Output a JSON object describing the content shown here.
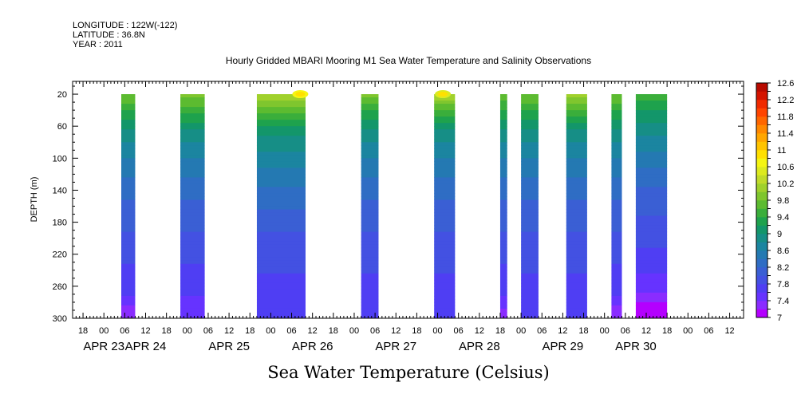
{
  "header": {
    "longitude": "LONGITUDE : 122W(-122)",
    "latitude": "LATITUDE : 36.8N",
    "year": "YEAR : 2011"
  },
  "title": "Hourly Gridded MBARI Mooring M1 Sea Water Temperature and Salinity Observations",
  "footer_title": "Sea Water Temperature (Celsius)",
  "chart_data": {
    "type": "heatmap",
    "ylabel": "DEPTH (m)",
    "xlabel": "",
    "ylim": [
      300,
      4
    ],
    "y_ticks": [
      20,
      60,
      100,
      140,
      180,
      220,
      260,
      300
    ],
    "x_unit": "hours since APR 23 00:00",
    "xlim": [
      -9,
      184
    ],
    "hour_ticks": [
      {
        "h": -6,
        "label": "18"
      },
      {
        "h": 0,
        "label": "00"
      },
      {
        "h": 6,
        "label": "06"
      },
      {
        "h": 12,
        "label": "12"
      },
      {
        "h": 18,
        "label": "18"
      },
      {
        "h": 24,
        "label": "00"
      },
      {
        "h": 30,
        "label": "06"
      },
      {
        "h": 36,
        "label": "12"
      },
      {
        "h": 42,
        "label": "18"
      },
      {
        "h": 48,
        "label": "00"
      },
      {
        "h": 54,
        "label": "06"
      },
      {
        "h": 60,
        "label": "12"
      },
      {
        "h": 66,
        "label": "18"
      },
      {
        "h": 72,
        "label": "00"
      },
      {
        "h": 78,
        "label": "06"
      },
      {
        "h": 84,
        "label": "12"
      },
      {
        "h": 90,
        "label": "18"
      },
      {
        "h": 96,
        "label": "00"
      },
      {
        "h": 102,
        "label": "06"
      },
      {
        "h": 108,
        "label": "12"
      },
      {
        "h": 114,
        "label": "18"
      },
      {
        "h": 120,
        "label": "00"
      },
      {
        "h": 126,
        "label": "06"
      },
      {
        "h": 132,
        "label": "12"
      },
      {
        "h": 138,
        "label": "18"
      },
      {
        "h": 144,
        "label": "00"
      },
      {
        "h": 150,
        "label": "06"
      },
      {
        "h": 156,
        "label": "12"
      },
      {
        "h": 162,
        "label": "18"
      },
      {
        "h": 168,
        "label": "00"
      },
      {
        "h": 174,
        "label": "06"
      },
      {
        "h": 180,
        "label": "12"
      }
    ],
    "date_labels": [
      {
        "h": 0,
        "label": "APR 23"
      },
      {
        "h": 12,
        "label": "APR 24"
      },
      {
        "h": 36,
        "label": "APR 25"
      },
      {
        "h": 60,
        "label": "APR 26"
      },
      {
        "h": 84,
        "label": "APR 27"
      },
      {
        "h": 108,
        "label": "APR 28"
      },
      {
        "h": 132,
        "label": "APR 29"
      },
      {
        "h": 153,
        "label": "APR 30"
      }
    ],
    "colorbar": {
      "levels": [
        7,
        7.2,
        7.4,
        7.6,
        7.8,
        8,
        8.2,
        8.4,
        8.6,
        8.8,
        9,
        9.2,
        9.4,
        9.6,
        9.8,
        10,
        10.2,
        10.4,
        10.6,
        10.8,
        11,
        11.2,
        11.4,
        11.6,
        11.8,
        12,
        12.2,
        12.4,
        12.6
      ],
      "colors": [
        "#b400ff",
        "#8a2cff",
        "#6633ff",
        "#4f3ef3",
        "#4351e2",
        "#3a5fd4",
        "#2f6dc4",
        "#2479b2",
        "#1b85a0",
        "#168e86",
        "#13966a",
        "#1ea24d",
        "#3aae3b",
        "#5cbb30",
        "#7fc62e",
        "#a0d12c",
        "#c1db2a",
        "#ddea1f",
        "#f5f512",
        "#ffe000",
        "#ffc400",
        "#ffa600",
        "#ff8800",
        "#ff6600",
        "#ff4400",
        "#f02a00",
        "#d41400",
        "#b80a00"
      ],
      "labels": [
        "7",
        "7.4",
        "7.8",
        "8.2",
        "8.6",
        "9",
        "9.4",
        "9.8",
        "10.2",
        "10.6",
        "11",
        "11.4",
        "11.8",
        "12.2",
        "12.6"
      ]
    },
    "series": [
      {
        "start": 5,
        "end": 8,
        "profile": [
          [
            20,
            9.8
          ],
          [
            40,
            9.4
          ],
          [
            70,
            8.9
          ],
          [
            110,
            8.5
          ],
          [
            150,
            8.2
          ],
          [
            190,
            8.0
          ],
          [
            230,
            7.8
          ],
          [
            270,
            7.6
          ],
          [
            290,
            7.3
          ],
          [
            300,
            7.3
          ]
        ]
      },
      {
        "start": 22,
        "end": 28,
        "profile": [
          [
            20,
            9.9
          ],
          [
            40,
            9.5
          ],
          [
            70,
            8.9
          ],
          [
            110,
            8.5
          ],
          [
            150,
            8.2
          ],
          [
            190,
            8.0
          ],
          [
            230,
            7.8
          ],
          [
            270,
            7.6
          ],
          [
            300,
            7.5
          ]
        ]
      },
      {
        "start": 44,
        "end": 57,
        "profile": [
          [
            20,
            10.2
          ],
          [
            40,
            9.7
          ],
          [
            70,
            9.0
          ],
          [
            110,
            8.6
          ],
          [
            150,
            8.3
          ],
          [
            190,
            8.0
          ],
          [
            230,
            7.85
          ],
          [
            270,
            7.7
          ],
          [
            300,
            7.6
          ]
        ],
        "hotspot": {
          "h": 56,
          "depth": 20,
          "value": 10.9
        }
      },
      {
        "start": 74,
        "end": 78,
        "profile": [
          [
            20,
            9.9
          ],
          [
            40,
            9.4
          ],
          [
            70,
            8.9
          ],
          [
            110,
            8.5
          ],
          [
            150,
            8.2
          ],
          [
            190,
            8.0
          ],
          [
            230,
            7.85
          ],
          [
            270,
            7.7
          ],
          [
            300,
            7.6
          ]
        ]
      },
      {
        "start": 95,
        "end": 100,
        "profile": [
          [
            20,
            10.2
          ],
          [
            40,
            9.6
          ],
          [
            70,
            8.9
          ],
          [
            110,
            8.5
          ],
          [
            150,
            8.2
          ],
          [
            190,
            8.0
          ],
          [
            230,
            7.85
          ],
          [
            270,
            7.7
          ],
          [
            300,
            7.6
          ]
        ],
        "hotspot": {
          "h": 97,
          "depth": 20,
          "value": 10.8
        }
      },
      {
        "start": 114,
        "end": 115,
        "profile": [
          [
            20,
            9.7
          ],
          [
            40,
            9.4
          ],
          [
            70,
            8.9
          ],
          [
            110,
            8.5
          ],
          [
            150,
            8.2
          ],
          [
            190,
            8.0
          ],
          [
            230,
            7.8
          ],
          [
            270,
            7.6
          ],
          [
            300,
            7.3
          ]
        ]
      },
      {
        "start": 120,
        "end": 124,
        "profile": [
          [
            20,
            9.8
          ],
          [
            40,
            9.4
          ],
          [
            70,
            8.9
          ],
          [
            110,
            8.5
          ],
          [
            150,
            8.2
          ],
          [
            190,
            8.0
          ],
          [
            230,
            7.85
          ],
          [
            270,
            7.7
          ],
          [
            300,
            7.6
          ]
        ]
      },
      {
        "start": 133,
        "end": 138,
        "profile": [
          [
            20,
            10.1
          ],
          [
            40,
            9.6
          ],
          [
            70,
            8.9
          ],
          [
            110,
            8.5
          ],
          [
            150,
            8.2
          ],
          [
            190,
            8.0
          ],
          [
            230,
            7.85
          ],
          [
            270,
            7.7
          ],
          [
            300,
            7.6
          ]
        ]
      },
      {
        "start": 146,
        "end": 148,
        "profile": [
          [
            20,
            9.8
          ],
          [
            40,
            9.4
          ],
          [
            70,
            8.9
          ],
          [
            110,
            8.5
          ],
          [
            150,
            8.2
          ],
          [
            190,
            8.0
          ],
          [
            230,
            7.8
          ],
          [
            270,
            7.6
          ],
          [
            290,
            7.3
          ],
          [
            300,
            7.3
          ]
        ]
      },
      {
        "start": 153,
        "end": 161,
        "profile": [
          [
            20,
            9.6
          ],
          [
            40,
            9.2
          ],
          [
            70,
            8.8
          ],
          [
            110,
            8.4
          ],
          [
            150,
            8.1
          ],
          [
            190,
            7.9
          ],
          [
            230,
            7.7
          ],
          [
            260,
            7.5
          ],
          [
            280,
            7.2
          ],
          [
            300,
            7.1
          ]
        ]
      }
    ]
  }
}
